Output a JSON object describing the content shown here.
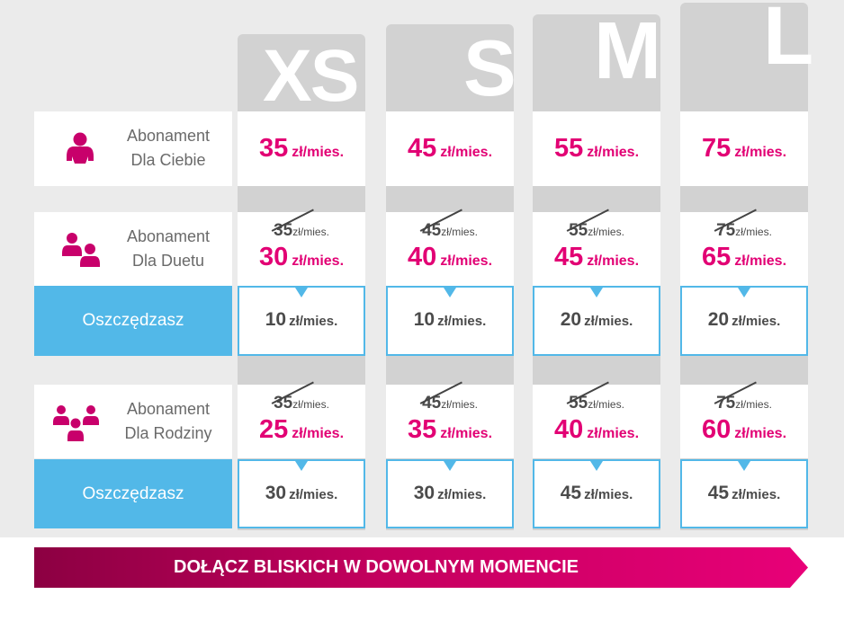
{
  "sizes": [
    {
      "letter": "XS"
    },
    {
      "letter": "S"
    },
    {
      "letter": "M"
    },
    {
      "letter": "L"
    }
  ],
  "unit": "zł/mies.",
  "rows": {
    "ciebie": {
      "line1": "Abonament",
      "line2": "Dla Ciebie",
      "icon": "person-icon",
      "prices": [
        "35",
        "45",
        "55",
        "75"
      ]
    },
    "duet": {
      "line1": "Abonament",
      "line2": "Dla Duetu",
      "icon": "two-persons-icon",
      "old_prices": [
        "35",
        "45",
        "55",
        "75"
      ],
      "prices": [
        "30",
        "40",
        "45",
        "65"
      ],
      "savings_label": "Oszczędzasz",
      "savings": [
        "10",
        "10",
        "20",
        "20"
      ]
    },
    "rodzina": {
      "line1": "Abonament",
      "line2": "Dla Rodziny",
      "icon": "family-icon",
      "old_prices": [
        "35",
        "45",
        "55",
        "75"
      ],
      "prices": [
        "25",
        "35",
        "40",
        "60"
      ],
      "savings_label": "Oszczędzasz",
      "savings": [
        "30",
        "30",
        "45",
        "45"
      ]
    }
  },
  "banner": {
    "text": "DOŁĄCZ BLISKICH W DOWOLNYM MOMENCIE"
  },
  "colors": {
    "magenta": "#e20074",
    "blue": "#52b8e8",
    "grey_column": "#d2d2d2",
    "background": "#ebebeb",
    "text_grey": "#6a6a6a"
  }
}
